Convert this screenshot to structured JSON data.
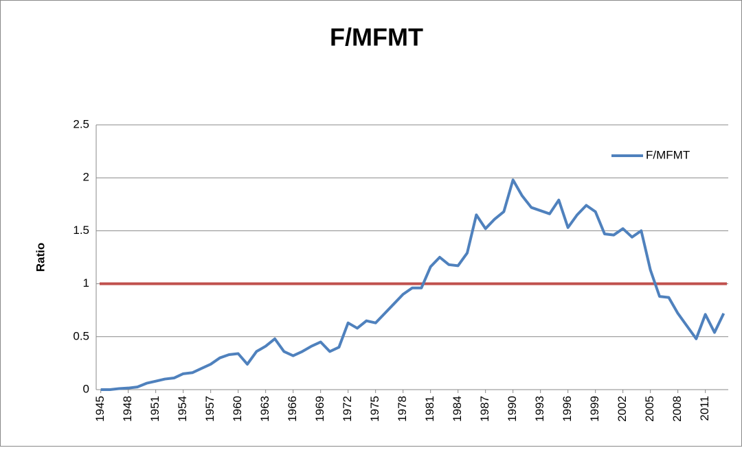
{
  "chart_data": {
    "type": "line",
    "title": "F/MFMT",
    "y_label": "Ratio",
    "x": [
      1945,
      1946,
      1947,
      1948,
      1949,
      1950,
      1951,
      1952,
      1953,
      1954,
      1955,
      1956,
      1957,
      1958,
      1959,
      1960,
      1961,
      1962,
      1963,
      1964,
      1965,
      1966,
      1967,
      1968,
      1969,
      1970,
      1971,
      1972,
      1973,
      1974,
      1975,
      1976,
      1977,
      1978,
      1979,
      1980,
      1981,
      1982,
      1983,
      1984,
      1985,
      1986,
      1987,
      1988,
      1989,
      1990,
      1991,
      1992,
      1993,
      1994,
      1995,
      1996,
      1997,
      1998,
      1999,
      2000,
      2001,
      2002,
      2003,
      2004,
      2005,
      2006,
      2007,
      2008,
      2009,
      2010,
      2011,
      2012,
      2013
    ],
    "series": [
      {
        "name": "F/MFMT",
        "color": "#4f81bd",
        "values": [
          0,
          0,
          0.01,
          0.015,
          0.025,
          0.06,
          0.08,
          0.1,
          0.11,
          0.15,
          0.16,
          0.2,
          0.24,
          0.3,
          0.33,
          0.34,
          0.24,
          0.36,
          0.41,
          0.48,
          0.36,
          0.32,
          0.36,
          0.41,
          0.45,
          0.36,
          0.4,
          0.63,
          0.58,
          0.65,
          0.63,
          0.72,
          0.81,
          0.9,
          0.96,
          0.96,
          1.16,
          1.25,
          1.18,
          1.17,
          1.29,
          1.65,
          1.52,
          1.61,
          1.68,
          1.98,
          1.83,
          1.72,
          1.69,
          1.66,
          1.79,
          1.53,
          1.65,
          1.74,
          1.68,
          1.47,
          1.46,
          1.52,
          1.44,
          1.5,
          1.13,
          0.88,
          0.87,
          0.72,
          0.6,
          0.48,
          0.71,
          0.54,
          0.72
        ]
      }
    ],
    "reference_line": {
      "value": 1,
      "color": "#c0504d"
    },
    "xlim": [
      1944.5,
      2013.5
    ],
    "xticks": [
      1945,
      1948,
      1951,
      1954,
      1957,
      1960,
      1963,
      1966,
      1969,
      1972,
      1975,
      1978,
      1981,
      1984,
      1987,
      1990,
      1993,
      1996,
      1999,
      2002,
      2005,
      2008,
      2011
    ],
    "ylim": [
      0,
      2.5
    ],
    "yticks": [
      0,
      0.5,
      1,
      1.5,
      2,
      2.5
    ],
    "grid": true,
    "legend": "top-right"
  }
}
